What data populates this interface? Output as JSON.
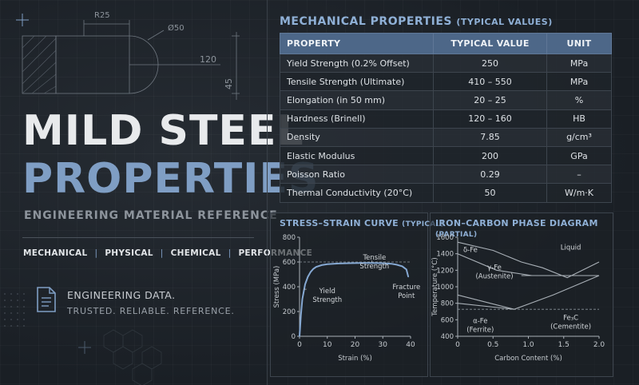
{
  "drawing": {
    "radius_label": "R25",
    "diameter_label": "Ø50",
    "length_label": "120",
    "height_label": "45"
  },
  "hero": {
    "title_line1": "MILD STEEL",
    "title_line2": "PROPERTIES",
    "subtitle": "ENGINEERING MATERIAL REFERENCE",
    "tags": [
      "MECHANICAL",
      "PHYSICAL",
      "CHEMICAL",
      "PERFORMANCE"
    ],
    "tag_separator": "|",
    "tagline1": "ENGINEERING DATA.",
    "tagline2": "TRUSTED. RELIABLE. REFERENCE."
  },
  "properties_table": {
    "title": "MECHANICAL PROPERTIES",
    "title_suffix": "(TYPICAL VALUES)",
    "headers": [
      "PROPERTY",
      "TYPICAL VALUE",
      "UNIT"
    ],
    "rows": [
      {
        "property": "Yield Strength (0.2% Offset)",
        "value": "250",
        "unit": "MPa"
      },
      {
        "property": "Tensile Strength (Ultimate)",
        "value": "410 – 550",
        "unit": "MPa"
      },
      {
        "property": "Elongation (in 50 mm)",
        "value": "20 – 25",
        "unit": "%"
      },
      {
        "property": "Hardness (Brinell)",
        "value": "120 – 160",
        "unit": "HB"
      },
      {
        "property": "Density",
        "value": "7.85",
        "unit": "g/cm³"
      },
      {
        "property": "Elastic Modulus",
        "value": "200",
        "unit": "GPa"
      },
      {
        "property": "Poisson Ratio",
        "value": "0.29",
        "unit": "–"
      },
      {
        "property": "Thermal Conductivity (20°C)",
        "value": "50",
        "unit": "W/m·K"
      }
    ]
  },
  "chart_data": [
    {
      "type": "line",
      "title": "STRESS–STRAIN CURVE",
      "title_suffix": "(TYPICAL)",
      "xlabel": "Strain (%)",
      "ylabel": "Stress (MPa)",
      "xlim": [
        0,
        40
      ],
      "ylim": [
        0,
        800
      ],
      "xticks": [
        0,
        10,
        20,
        30,
        40
      ],
      "yticks": [
        0,
        200,
        400,
        600,
        800
      ],
      "grid": false,
      "series": [
        {
          "x": [
            0,
            0.5,
            1,
            2,
            3,
            4,
            5,
            6,
            8,
            10,
            14,
            18,
            22,
            26,
            30,
            33,
            35,
            37,
            38.5,
            39.2
          ],
          "y": [
            0,
            170,
            300,
            420,
            480,
            520,
            545,
            560,
            575,
            582,
            588,
            590,
            592,
            592,
            590,
            586,
            578,
            565,
            540,
            480
          ]
        }
      ],
      "reference_line": {
        "y": 600
      },
      "annotations": [
        {
          "text": [
            "Tensile",
            "Strength"
          ],
          "x": 27,
          "y": 620
        },
        {
          "text": [
            "Yield",
            "Strength"
          ],
          "x": 10,
          "y": 350
        },
        {
          "text": [
            "Fracture",
            "Point"
          ],
          "x": 38.5,
          "y": 380
        }
      ]
    },
    {
      "type": "line",
      "title": "IRON–CARBON PHASE DIAGRAM",
      "title_suffix": "(PARTIAL)",
      "xlabel": "Carbon Content (%)",
      "ylabel": "Temperature (°C)",
      "xlim": [
        0,
        2.0
      ],
      "ylim": [
        400,
        1600
      ],
      "xticks": [
        "0",
        "0.5",
        "1.0",
        "1.5",
        "2.0"
      ],
      "yticks": [
        400,
        600,
        800,
        1000,
        1200,
        1400,
        1600
      ],
      "grid": false,
      "series": [
        {
          "x": [
            0,
            0.5,
            0.9,
            1.2,
            1.55,
            2.0
          ],
          "y": [
            1540,
            1440,
            1300,
            1230,
            1110,
            1300
          ]
        },
        {
          "x": [
            0,
            0.55,
            1.05
          ],
          "y": [
            1400,
            1200,
            1135
          ]
        },
        {
          "x": [
            0.9,
            2.0
          ],
          "y": [
            1135,
            1135
          ]
        },
        {
          "x": [
            0,
            0.55,
            0.8
          ],
          "y": [
            900,
            780,
            727
          ]
        },
        {
          "x": [
            0.8,
            1.35,
            2.0
          ],
          "y": [
            727,
            900,
            1135
          ]
        },
        {
          "x": [
            0,
            0.8
          ],
          "y": [
            800,
            727
          ]
        }
      ],
      "dashed_line": {
        "y": 727
      },
      "region_labels": [
        {
          "text": [
            "δ-Fe"
          ],
          "x": 0.18,
          "y": 1420
        },
        {
          "text": [
            "Liquid"
          ],
          "x": 1.6,
          "y": 1450
        },
        {
          "text": [
            "γ-Fe",
            "(Austenite)"
          ],
          "x": 0.52,
          "y": 1210
        },
        {
          "text": [
            "α-Fe",
            "(Ferrite)"
          ],
          "x": 0.32,
          "y": 560
        },
        {
          "text": [
            "Fe₃C",
            "(Cementite)"
          ],
          "x": 1.6,
          "y": 600
        }
      ]
    }
  ]
}
